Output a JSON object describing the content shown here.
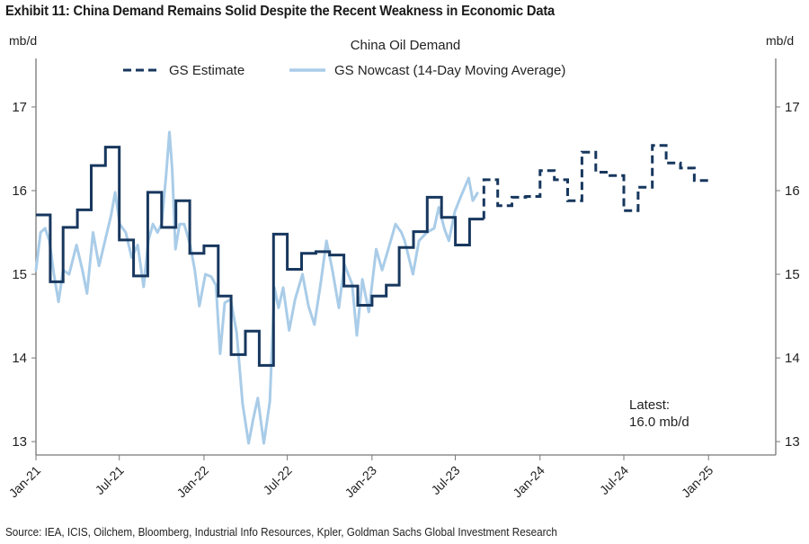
{
  "title": "Exhibit 11: China Demand Remains Solid Despite the Recent Weakness in Economic Data",
  "source": "Source: IEA, ICIS, Oilchem, Bloomberg, Industrial Info Resources, Kpler, Goldman Sachs Global Investment Research",
  "chart_data": {
    "type": "line",
    "title": "China Oil Demand",
    "ylabel_left": "mb/d",
    "ylabel_right": "mb/d",
    "ylim": [
      12.84,
      17.58
    ],
    "yticks": [
      13,
      14,
      15,
      16,
      17
    ],
    "xlim": [
      "2021-01-01",
      "2025-05-27"
    ],
    "xticks": [
      {
        "date": "2021-01-01",
        "label": "Jan-21"
      },
      {
        "date": "2021-07-01",
        "label": "Jul-21"
      },
      {
        "date": "2022-01-01",
        "label": "Jan-22"
      },
      {
        "date": "2022-07-01",
        "label": "Jul-22"
      },
      {
        "date": "2023-01-01",
        "label": "Jan-23"
      },
      {
        "date": "2023-07-01",
        "label": "Jul-23"
      },
      {
        "date": "2024-01-01",
        "label": "Jan-24"
      },
      {
        "date": "2024-07-01",
        "label": "Jul-24"
      },
      {
        "date": "2025-01-01",
        "label": "Jan-25"
      }
    ],
    "grid": false,
    "legend_position": "top",
    "annotation": {
      "line1": "Latest:",
      "line2": "16.0 mb/d"
    },
    "series": [
      {
        "name": "GS Estimate",
        "color": "#17375e",
        "style": "step",
        "dashed_from": "2023-09",
        "months": [
          "2021-01",
          "2021-02",
          "2021-03",
          "2021-04",
          "2021-05",
          "2021-06",
          "2021-07",
          "2021-08",
          "2021-09",
          "2021-10",
          "2021-11",
          "2021-12",
          "2022-01",
          "2022-02",
          "2022-03",
          "2022-04",
          "2022-05",
          "2022-06",
          "2022-07",
          "2022-08",
          "2022-09",
          "2022-10",
          "2022-11",
          "2022-12",
          "2023-01",
          "2023-02",
          "2023-03",
          "2023-04",
          "2023-05",
          "2023-06",
          "2023-07",
          "2023-08",
          "2023-09",
          "2023-10",
          "2023-11",
          "2023-12",
          "2024-01",
          "2024-02",
          "2024-03",
          "2024-04",
          "2024-05",
          "2024-06",
          "2024-07",
          "2024-08",
          "2024-09",
          "2024-10",
          "2024-11",
          "2024-12"
        ],
        "values": [
          15.71,
          14.91,
          15.56,
          15.77,
          16.3,
          16.52,
          15.41,
          14.98,
          15.98,
          15.56,
          15.88,
          15.25,
          15.34,
          14.74,
          14.04,
          14.32,
          13.91,
          15.48,
          15.06,
          15.25,
          15.27,
          15.23,
          14.86,
          14.63,
          14.74,
          14.87,
          15.32,
          15.51,
          15.92,
          15.68,
          15.35,
          15.66,
          16.13,
          15.82,
          15.92,
          15.93,
          16.24,
          16.13,
          15.88,
          16.46,
          16.22,
          16.18,
          15.76,
          16.04,
          16.54,
          16.33,
          16.27,
          16.12
        ]
      },
      {
        "name": "GS Nowcast (14-Day Moving Average)",
        "color": "#a9cce8",
        "style": "line",
        "points": [
          [
            "2021-01-01",
            15.05
          ],
          [
            "2021-01-11",
            15.5
          ],
          [
            "2021-01-21",
            15.55
          ],
          [
            "2021-01-30",
            15.4
          ],
          [
            "2021-02-09",
            15.0
          ],
          [
            "2021-02-19",
            14.67
          ],
          [
            "2021-03-01",
            15.05
          ],
          [
            "2021-03-14",
            15.0
          ],
          [
            "2021-03-30",
            15.35
          ],
          [
            "2021-04-12",
            15.05
          ],
          [
            "2021-04-22",
            14.77
          ],
          [
            "2021-05-05",
            15.5
          ],
          [
            "2021-05-18",
            15.1
          ],
          [
            "2021-05-31",
            15.4
          ],
          [
            "2021-06-13",
            15.7
          ],
          [
            "2021-06-22",
            15.98
          ],
          [
            "2021-07-02",
            15.6
          ],
          [
            "2021-07-15",
            15.5
          ],
          [
            "2021-07-28",
            15.2
          ],
          [
            "2021-08-10",
            15.35
          ],
          [
            "2021-08-23",
            14.85
          ],
          [
            "2021-09-02",
            15.4
          ],
          [
            "2021-09-12",
            15.6
          ],
          [
            "2021-09-22",
            15.5
          ],
          [
            "2021-10-01",
            15.6
          ],
          [
            "2021-10-11",
            16.2
          ],
          [
            "2021-10-18",
            16.7
          ],
          [
            "2021-10-24",
            16.25
          ],
          [
            "2021-10-31",
            15.3
          ],
          [
            "2021-11-09",
            15.6
          ],
          [
            "2021-11-19",
            15.6
          ],
          [
            "2021-12-02",
            15.35
          ],
          [
            "2021-12-12",
            15.05
          ],
          [
            "2021-12-22",
            14.62
          ],
          [
            "2022-01-04",
            15.0
          ],
          [
            "2022-01-17",
            14.97
          ],
          [
            "2022-01-27",
            14.87
          ],
          [
            "2022-02-05",
            14.05
          ],
          [
            "2022-02-15",
            14.66
          ],
          [
            "2022-02-28",
            14.7
          ],
          [
            "2022-03-13",
            14.3
          ],
          [
            "2022-03-26",
            13.45
          ],
          [
            "2022-04-08",
            12.98
          ],
          [
            "2022-04-18",
            13.27
          ],
          [
            "2022-04-28",
            13.52
          ],
          [
            "2022-05-11",
            12.98
          ],
          [
            "2022-05-24",
            13.48
          ],
          [
            "2022-06-03",
            14.84
          ],
          [
            "2022-06-12",
            14.6
          ],
          [
            "2022-06-22",
            14.84
          ],
          [
            "2022-07-05",
            14.33
          ],
          [
            "2022-07-18",
            14.7
          ],
          [
            "2022-08-03",
            15.0
          ],
          [
            "2022-08-16",
            14.62
          ],
          [
            "2022-08-29",
            14.4
          ],
          [
            "2022-09-12",
            14.91
          ],
          [
            "2022-09-24",
            15.4
          ],
          [
            "2022-10-07",
            15.05
          ],
          [
            "2022-10-21",
            14.6
          ],
          [
            "2022-11-02",
            15.12
          ],
          [
            "2022-11-19",
            14.88
          ],
          [
            "2022-11-29",
            14.27
          ],
          [
            "2022-12-11",
            14.94
          ],
          [
            "2022-12-25",
            14.55
          ],
          [
            "2023-01-10",
            15.3
          ],
          [
            "2023-01-23",
            15.05
          ],
          [
            "2023-02-08",
            15.35
          ],
          [
            "2023-02-21",
            15.6
          ],
          [
            "2023-03-06",
            15.5
          ],
          [
            "2023-03-13",
            15.4
          ],
          [
            "2023-03-31",
            15.0
          ],
          [
            "2023-04-13",
            15.4
          ],
          [
            "2023-04-30",
            15.5
          ],
          [
            "2023-05-16",
            15.55
          ],
          [
            "2023-05-26",
            15.8
          ],
          [
            "2023-06-08",
            15.53
          ],
          [
            "2023-06-17",
            15.4
          ],
          [
            "2023-06-30",
            15.75
          ],
          [
            "2023-07-13",
            15.93
          ],
          [
            "2023-07-30",
            16.15
          ],
          [
            "2023-08-08",
            15.88
          ],
          [
            "2023-08-18",
            15.97
          ]
        ]
      }
    ]
  }
}
